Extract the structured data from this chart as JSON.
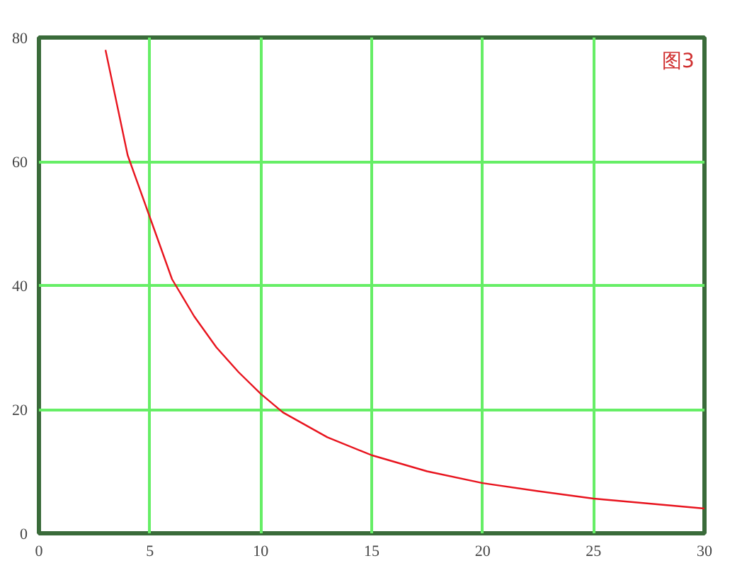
{
  "chart_data": {
    "type": "line",
    "x": [
      3,
      4,
      5,
      6,
      7,
      8,
      9,
      10,
      11,
      13,
      15,
      17.5,
      20,
      22.5,
      25,
      27.5,
      30
    ],
    "series": [
      {
        "color": "#e8141e",
        "values": [
          78,
          61,
          51,
          41,
          35,
          30,
          26,
          22.5,
          19.5,
          15.5,
          12.6,
          10,
          8.1,
          6.8,
          5.6,
          4.8,
          4.0
        ]
      }
    ],
    "xlim": [
      0,
      30
    ],
    "xticks": [
      0,
      5,
      10,
      15,
      20,
      25,
      30
    ],
    "ylim": [
      0,
      80
    ],
    "yticks": [
      0,
      20,
      40,
      60,
      80
    ],
    "grid": true,
    "marker": "none",
    "line_style": "solid",
    "annotations": [
      "图3"
    ]
  }
}
